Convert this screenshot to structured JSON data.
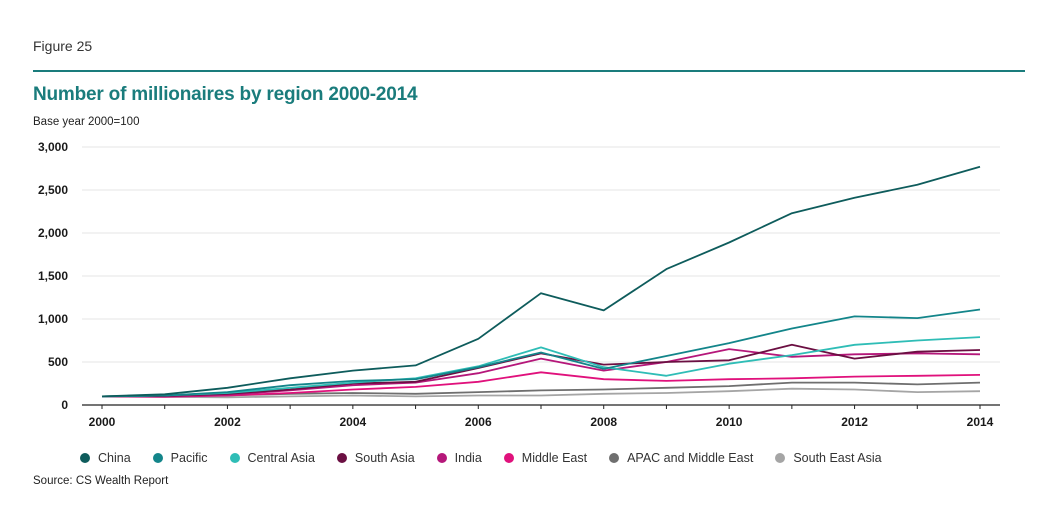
{
  "figure_label": "Figure 25",
  "title": "Number of millionaires by region 2000-2014",
  "subtitle": "Base year 2000=100",
  "source": "Source: CS Wealth Report",
  "chart_data": {
    "type": "line",
    "x": [
      2000,
      2001,
      2002,
      2003,
      2004,
      2005,
      2006,
      2007,
      2008,
      2009,
      2010,
      2011,
      2012,
      2013,
      2014
    ],
    "x_tick_labels": [
      "2000",
      "2002",
      "2004",
      "2006",
      "2008",
      "2010",
      "2012",
      "2014"
    ],
    "y_tick_labels": [
      "0",
      "500",
      "1,000",
      "1,500",
      "2,000",
      "2,500",
      "3,000"
    ],
    "ylim": [
      0,
      3000
    ],
    "grid": "horizontal",
    "legend_position": "bottom",
    "series": [
      {
        "name": "China",
        "color": "#0e5c5c",
        "values": [
          100,
          125,
          200,
          310,
          400,
          460,
          770,
          1300,
          1100,
          1580,
          1890,
          2230,
          2410,
          2560,
          2770
        ]
      },
      {
        "name": "Pacific",
        "color": "#13858a",
        "values": [
          100,
          110,
          150,
          230,
          280,
          300,
          440,
          610,
          420,
          570,
          720,
          890,
          1030,
          1010,
          1110
        ]
      },
      {
        "name": "Central Asia",
        "color": "#2fbdb6",
        "values": [
          100,
          110,
          140,
          200,
          260,
          310,
          450,
          670,
          440,
          340,
          480,
          580,
          700,
          750,
          790
        ]
      },
      {
        "name": "South Asia",
        "color": "#6b0f42",
        "values": [
          100,
          105,
          130,
          180,
          250,
          270,
          430,
          600,
          470,
          500,
          520,
          700,
          540,
          620,
          640
        ]
      },
      {
        "name": "India",
        "color": "#b5177a",
        "values": [
          100,
          100,
          120,
          170,
          230,
          260,
          370,
          540,
          400,
          500,
          650,
          560,
          590,
          600,
          590
        ]
      },
      {
        "name": "Middle East",
        "color": "#e0117c",
        "values": [
          100,
          95,
          110,
          140,
          180,
          210,
          270,
          380,
          300,
          280,
          300,
          310,
          330,
          340,
          350
        ]
      },
      {
        "name": "APAC and Middle East",
        "color": "#6f6f6f",
        "values": [
          100,
          105,
          110,
          130,
          140,
          130,
          150,
          170,
          180,
          200,
          220,
          260,
          260,
          240,
          260
        ]
      },
      {
        "name": "South East Asia",
        "color": "#a5a5a5",
        "values": [
          100,
          95,
          90,
          100,
          110,
          100,
          110,
          110,
          130,
          140,
          160,
          190,
          180,
          150,
          160
        ]
      }
    ]
  }
}
